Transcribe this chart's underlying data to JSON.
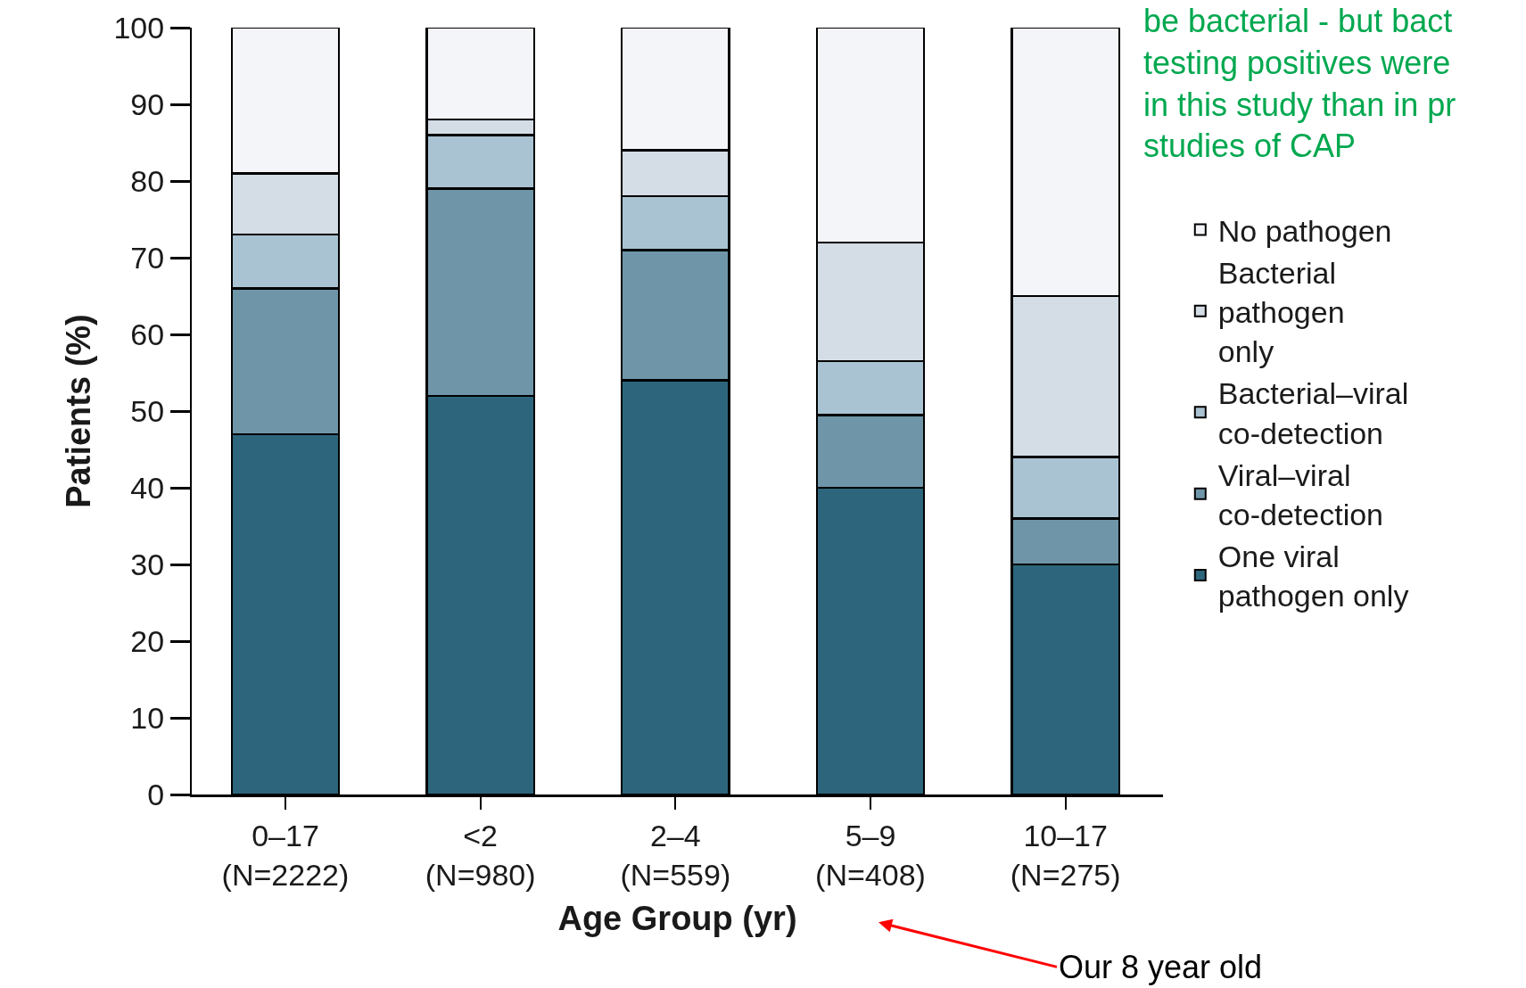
{
  "chart_data": {
    "type": "bar",
    "stacked": true,
    "xlabel": "Age Group (yr)",
    "ylabel": "Patients (%)",
    "categories": [
      "0–17\n(N=2222)",
      "<2\n(N=980)",
      "2–4\n(N=559)",
      "5–9\n(N=408)",
      "10–17\n(N=275)"
    ],
    "series": [
      {
        "name": "One viral\npathogen only",
        "color": "#2d667c",
        "values": [
          47,
          52,
          54,
          40,
          30
        ]
      },
      {
        "name": "Viral–viral\nco-detection",
        "color": "#6f96a8",
        "values": [
          19,
          27,
          17,
          9.5,
          6
        ]
      },
      {
        "name": "Bacterial–viral\nco-detection",
        "color": "#a9c3d2",
        "values": [
          7,
          7,
          7,
          7,
          8
        ]
      },
      {
        "name": "Bacterial\npathogen\nonly",
        "color": "#d4dce5",
        "values": [
          8,
          2,
          6,
          15.5,
          21
        ]
      },
      {
        "name": "No pathogen",
        "color": "#f4f5f9",
        "values": [
          19,
          12,
          16,
          28,
          35
        ]
      }
    ],
    "ylim": [
      0,
      100
    ],
    "yticks": [
      0,
      10,
      20,
      30,
      40,
      50,
      60,
      70,
      80,
      90,
      100
    ],
    "legend": "right",
    "annotations": [
      "be bacterial - but bact\ntesting positives were\nin this study than in pr\nstudies of CAP",
      "Our 8 year old"
    ]
  }
}
